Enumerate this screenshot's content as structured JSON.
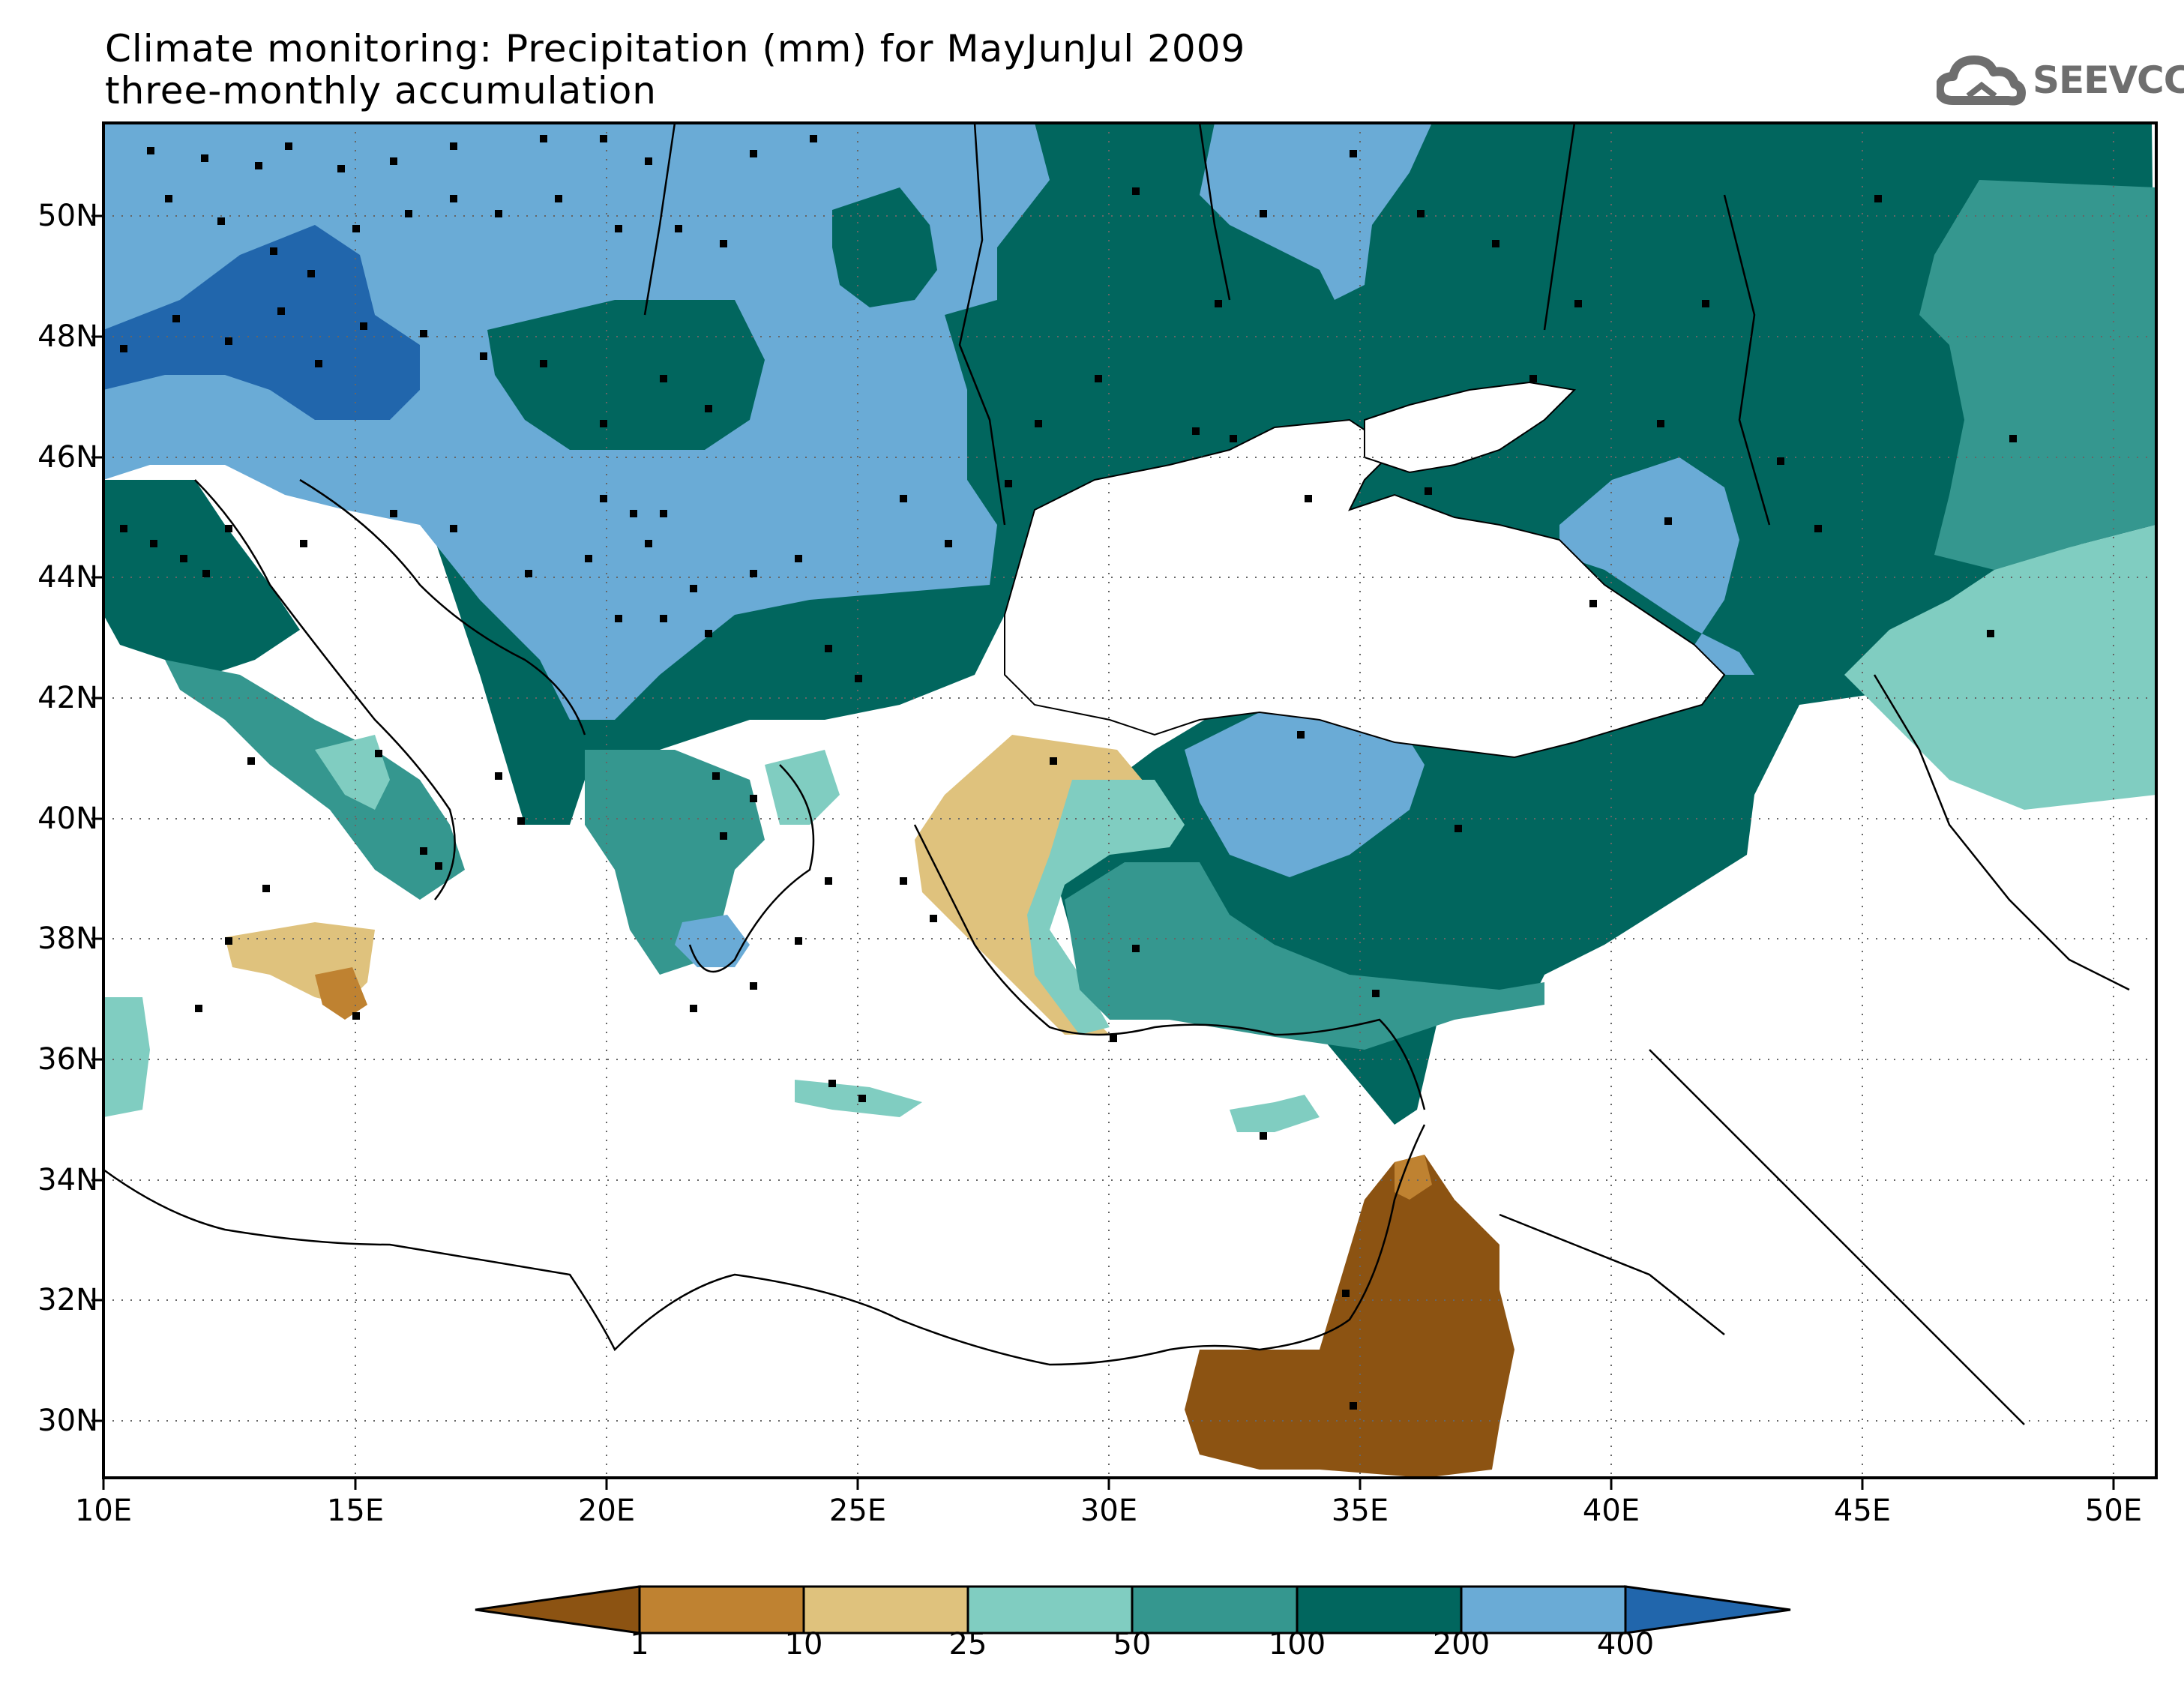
{
  "title": {
    "line1": "Climate monitoring: Precipitation (mm) for MayJunJul 2009",
    "line2": "three-monthly accumulation"
  },
  "logo": {
    "text": "SEEVCCC",
    "icon": "cloud-icon",
    "color": "#6e6e6e"
  },
  "map": {
    "lon_range": [
      10,
      51
    ],
    "lat_range": [
      29,
      51.5
    ],
    "x_ticks": [
      "10E",
      "15E",
      "20E",
      "25E",
      "30E",
      "35E",
      "40E",
      "45E",
      "50E"
    ],
    "y_ticks": [
      "30N",
      "32N",
      "34N",
      "36N",
      "38N",
      "40N",
      "42N",
      "44N",
      "46N",
      "48N",
      "50N"
    ],
    "grid": "dotted",
    "markers": "station-squares"
  },
  "colorbar": {
    "labels": [
      "1",
      "10",
      "25",
      "50",
      "100",
      "200",
      "400"
    ],
    "colors": [
      "#8c5312",
      "#bf8231",
      "#dfc27d",
      "#80cdc1",
      "#35978f",
      "#01665e",
      "#6aabd6",
      "#2166ac"
    ]
  }
}
